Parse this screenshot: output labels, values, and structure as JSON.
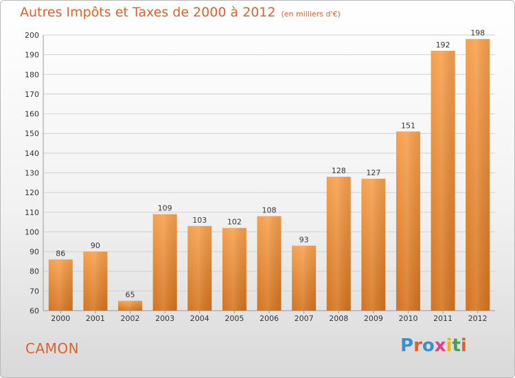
{
  "header": {
    "title": "Autres Impôts et Taxes de 2000 à 2012",
    "subtitle": "(en milliers d'€)"
  },
  "footer": {
    "city": "CAMON",
    "brand": "Proxiti",
    "brand_colors": [
      "#3a8fd0",
      "#e1602a",
      "#3a8fd0",
      "#e83b8a",
      "#f6b400",
      "#3ca35a",
      "#e1602a"
    ]
  },
  "colors": {
    "bar_light": "#f6a04d",
    "bar_dark": "#d4731e",
    "accent": "#e1602a",
    "axis_text": "#333333",
    "grid": "#d0d0d0"
  },
  "chart_data": {
    "type": "bar",
    "title": "Autres Impôts et Taxes de 2000 à 2012",
    "subtitle": "(en milliers d'€)",
    "categories": [
      "2000",
      "2001",
      "2002",
      "2003",
      "2004",
      "2005",
      "2006",
      "2007",
      "2008",
      "2009",
      "2010",
      "2011",
      "2012"
    ],
    "values": [
      86,
      90,
      65,
      109,
      103,
      102,
      108,
      93,
      128,
      127,
      151,
      192,
      198
    ],
    "ylim": [
      60,
      200
    ],
    "yticks": [
      60,
      70,
      80,
      90,
      100,
      110,
      120,
      130,
      140,
      150,
      160,
      170,
      180,
      190,
      200
    ],
    "grid": true,
    "data_labels": true
  }
}
